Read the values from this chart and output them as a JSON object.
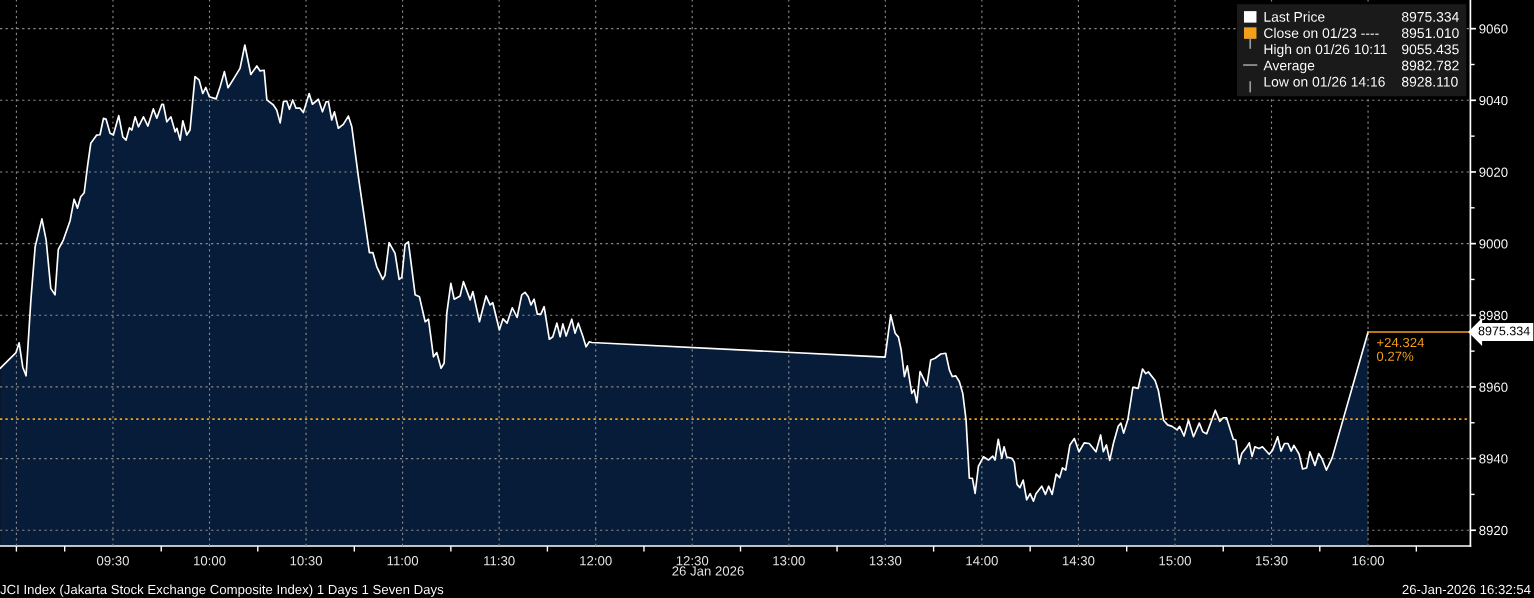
{
  "chart_data": {
    "type": "area",
    "title": "JCI Index (Jakarta Stock Exchange Composite Index) 1 Days 1 Seven Days",
    "xlabel": "26 Jan 2026",
    "x": [
      8.916,
      8.998,
      9.014,
      9.033,
      9.05,
      9.075,
      9.097,
      9.132,
      9.154,
      9.178,
      9.2,
      9.217,
      9.243,
      9.278,
      9.299,
      9.316,
      9.333,
      9.351,
      9.368,
      9.385,
      9.416,
      9.433,
      9.451,
      9.464,
      9.485,
      9.502,
      9.53,
      9.551,
      9.568,
      9.585,
      9.598,
      9.615,
      9.632,
      9.658,
      9.681,
      9.709,
      9.727,
      9.753,
      9.761,
      9.779,
      9.8,
      9.822,
      9.831,
      9.848,
      9.862,
      9.882,
      9.899,
      9.925,
      9.946,
      9.965,
      9.981,
      9.999,
      10.034,
      10.055,
      10.077,
      10.096,
      10.124,
      10.158,
      10.183,
      10.214,
      10.245,
      10.262,
      10.283,
      10.297,
      10.331,
      10.348,
      10.366,
      10.383,
      10.4,
      10.414,
      10.431,
      10.448,
      10.469,
      10.486,
      10.516,
      10.533,
      10.564,
      10.585,
      10.604,
      10.616,
      10.633,
      10.647,
      10.667,
      10.693,
      10.719,
      10.737,
      10.771,
      10.806,
      10.828,
      10.846,
      10.866,
      10.897,
      10.909,
      10.93,
      10.961,
      10.982,
      10.996,
      11.013,
      11.03,
      11.065,
      11.087,
      11.117,
      11.134,
      11.16,
      11.177,
      11.199,
      11.215,
      11.229,
      11.25,
      11.267,
      11.298,
      11.315,
      11.35,
      11.364,
      11.398,
      11.432,
      11.453,
      11.467,
      11.501,
      11.52,
      11.541,
      11.568,
      11.593,
      11.617,
      11.634,
      11.651,
      11.665,
      11.681,
      11.698,
      11.716,
      11.733,
      11.76,
      11.778,
      11.799,
      11.816,
      11.83,
      11.847,
      11.876,
      11.893,
      11.91,
      11.933,
      11.95,
      11.967,
      11.98,
      13.499,
      13.528,
      13.551,
      13.568,
      13.582,
      13.599,
      13.614,
      13.637,
      13.649,
      13.663,
      13.68,
      13.697,
      13.715,
      13.735,
      13.758,
      13.787,
      13.813,
      13.832,
      13.847,
      13.865,
      13.883,
      13.901,
      13.918,
      13.935,
      13.951,
      13.965,
      13.982,
      14.008,
      14.034,
      14.056,
      14.068,
      14.085,
      14.103,
      14.115,
      14.129,
      14.155,
      14.168,
      14.182,
      14.197,
      14.214,
      14.232,
      14.25,
      14.267,
      14.28,
      14.31,
      14.329,
      14.346,
      14.364,
      14.385,
      14.403,
      14.417,
      14.434,
      14.456,
      14.479,
      14.503,
      14.53,
      14.556,
      14.591,
      14.615,
      14.629,
      14.645,
      14.662,
      14.681,
      14.706,
      14.72,
      14.734,
      14.756,
      14.782,
      14.809,
      14.832,
      14.849,
      14.862,
      14.897,
      14.914,
      14.941,
      14.962,
      14.985,
      15.011,
      15.024,
      15.047,
      15.07,
      15.096,
      15.126,
      15.144,
      15.164,
      15.209,
      15.232,
      15.25,
      15.267,
      15.302,
      15.315,
      15.332,
      15.346,
      15.373,
      15.385,
      15.399,
      15.414,
      15.435,
      15.453,
      15.488,
      15.505,
      15.532,
      15.549,
      15.567,
      15.585,
      15.602,
      15.616,
      15.643,
      15.661,
      15.682,
      15.699,
      15.725,
      15.744,
      15.761,
      15.784,
      15.814,
      16.0
    ],
    "series": [
      {
        "name": "Last Price",
        "color": "#ffffff",
        "values": [
          8965.2,
          8969.6,
          8972.3,
          8965.5,
          8963.1,
          8984.3,
          8999.1,
          9006.9,
          9001.0,
          8987.5,
          8985.7,
          8998.4,
          9001.0,
          9006.4,
          9012.4,
          9009.9,
          9013.1,
          9014.2,
          9021.5,
          9028.0,
          9030.3,
          9030.4,
          9035.0,
          9034.8,
          9030.8,
          9030.3,
          9035.7,
          9029.8,
          9028.9,
          9032.3,
          9031.7,
          9035.4,
          9032.6,
          9035.4,
          9032.8,
          9037.6,
          9035.0,
          9038.9,
          9038.9,
          9034.0,
          9035.4,
          9031.2,
          9032.2,
          9028.9,
          9034.3,
          9030.3,
          9031.7,
          9046.6,
          9045.7,
          9041.9,
          9043.6,
          9041.0,
          9040.4,
          9043.8,
          9048.0,
          9043.5,
          9045.9,
          9048.9,
          9055.435,
          9047.2,
          9049.6,
          9048.2,
          9048.4,
          9040.1,
          9038.7,
          9037.3,
          9033.7,
          9039.6,
          9039.8,
          9037.5,
          9040.1,
          9037.8,
          9037.8,
          9036.6,
          9041.9,
          9038.9,
          9040.3,
          9036.8,
          9039.6,
          9039.6,
          9034.5,
          9036.8,
          9032.2,
          9033.3,
          9035.6,
          9032.6,
          9018.7,
          9005.7,
          8997.5,
          8997.5,
          8993.6,
          8990.0,
          8991.2,
          9000.3,
          8997.3,
          8990.0,
          8990.6,
          8999.8,
          9000.5,
          8985.7,
          8985.2,
          8978.2,
          8978.9,
          8968.4,
          8969.6,
          8965.2,
          8966.6,
          8980.6,
          8988.9,
          8984.5,
          8985.4,
          8989.4,
          8984.3,
          8986.6,
          8978.2,
          8985.4,
          8982.9,
          8983.5,
          8975.9,
          8979.0,
          8977.8,
          8982.1,
          8979.4,
          8985.7,
          8986.4,
          8985.2,
          8982.9,
          8984.5,
          8980.3,
          8980.3,
          8982.4,
          8973.3,
          8974.0,
          8977.8,
          8974.0,
          8977.6,
          8974.2,
          8978.9,
          8975.0,
          8977.8,
          8974.2,
          8971.2,
          8972.6,
          8972.4,
          8968.3,
          8980.1,
          8975.0,
          8973.9,
          8970.3,
          8962.9,
          8965.9,
          8958.2,
          8959.2,
          8955.6,
          8964.3,
          8962.4,
          8960.3,
          8967.5,
          8968.0,
          8969.2,
          8969.4,
          8964.7,
          8962.9,
          8963.1,
          8961.5,
          8958.2,
          8950.8,
          8934.5,
          8934.5,
          8930.3,
          8937.8,
          8940.5,
          8939.6,
          8940.7,
          8939.6,
          8945.4,
          8940.1,
          8943.3,
          8940.4,
          8940.1,
          8939.0,
          8932.8,
          8931.9,
          8934.0,
          8928.5,
          8930.2,
          8928.11,
          8930.2,
          8932.3,
          8930.0,
          8932.3,
          8930.0,
          8935.7,
          8934.7,
          8937.4,
          8936.8,
          8943.8,
          8945.6,
          8941.9,
          8944.4,
          8944.2,
          8941.9,
          8946.6,
          8941.9,
          8943.8,
          8939.5,
          8944.2,
          8949.0,
          8949.9,
          8947.1,
          8950.9,
          8959.9,
          8959.6,
          8965.0,
          8963.7,
          8964.2,
          8961.8,
          8959.0,
          8950.7,
          8949.4,
          8949.0,
          8948.0,
          8949.0,
          8946.3,
          8950.7,
          8946.1,
          8949.9,
          8947.5,
          8946.9,
          8953.5,
          8950.4,
          8951.4,
          8951.4,
          8945.4,
          8945.2,
          8938.5,
          8941.4,
          8943.3,
          8944.4,
          8940.6,
          8943.3,
          8942.8,
          8943.3,
          8941.2,
          8942.3,
          8946.1,
          8942.1,
          8944.2,
          8944.2,
          8942.1,
          8943.7,
          8941.2,
          8937.1,
          8937.4,
          8941.9,
          8938.1,
          8941.4,
          8940.0,
          8936.8,
          8940.2,
          8975.334
        ]
      }
    ],
    "xlim": [
      8.915,
      16.53
    ],
    "xticks": [
      {
        "value": 9,
        "label": null
      },
      {
        "value": 9.5,
        "label": "09:30"
      },
      {
        "value": 10,
        "label": "10:00"
      },
      {
        "value": 10.5,
        "label": "10:30"
      },
      {
        "value": 11,
        "label": "11:00"
      },
      {
        "value": 11.5,
        "label": "11:30"
      },
      {
        "value": 12,
        "label": "12:00"
      },
      {
        "value": 12.5,
        "label": "12:30"
      },
      {
        "value": 13,
        "label": "13:00"
      },
      {
        "value": 13.5,
        "label": "13:30"
      },
      {
        "value": 14,
        "label": "14:00"
      },
      {
        "value": 14.5,
        "label": "14:30"
      },
      {
        "value": 15,
        "label": "15:00"
      },
      {
        "value": 15.5,
        "label": "15:30"
      },
      {
        "value": 16,
        "label": "16:00"
      }
    ],
    "ylim": [
      8915.6,
      9068
    ],
    "yticks": [
      8920,
      8940,
      8960,
      8980,
      9000,
      9020,
      9040,
      9060
    ],
    "ref_lines": [
      {
        "axis": "y",
        "value": 8951.01,
        "label": "Close on 01/23 ---- 8951.010",
        "color": "#f5a01a",
        "line_style": "dotted"
      }
    ],
    "annotations": [
      {
        "text": "8975.334",
        "x": 16,
        "y": 8975.334
      },
      {
        "text": "+24.324\n0.27%",
        "x": 16,
        "y": 8975.334
      },
      "High on 01/26 10:11 9055.435",
      "Average 8982.782",
      "Low on 01/26 14:16 8928.110",
      "26-Jan-2026 16:32:54"
    ],
    "grid": true,
    "legend": "top right"
  }
}
